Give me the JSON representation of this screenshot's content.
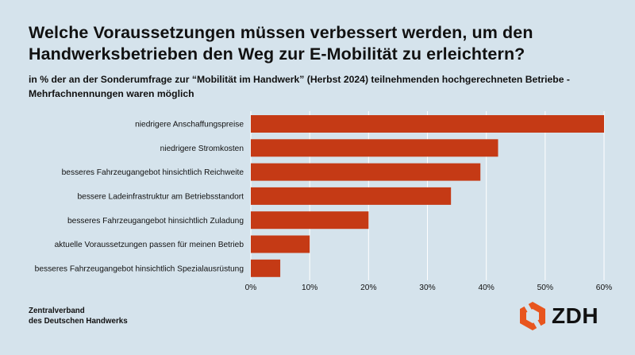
{
  "title_line1": "Welche Voraussetzungen müssen verbessert werden, um den",
  "title_line2": "Handwerksbetrieben den Weg zur E-Mobilität zu erleichtern?",
  "subtitle_line1": "in % der an der Sonderumfrage zur “Mobilität im Handwerk” (Herbst 2024) teilnehmenden hochgerechneten Betriebe  -",
  "subtitle_line2": "Mehrfachnennungen waren möglich",
  "footer_line1": "Zentralverband",
  "footer_line2": "des Deutschen Handwerks",
  "logo_text": "ZDH",
  "colors": {
    "bar": "#c53a15",
    "grid": "#ffffff",
    "background": "#d5e3ec",
    "logo": "#e8551e"
  },
  "chart_data": {
    "type": "bar",
    "orientation": "horizontal",
    "categories": [
      "niedrigere Anschaffungspreise",
      "niedrigere Stromkosten",
      "besseres Fahrzeugangebot hinsichtlich Reichweite",
      "bessere Ladeinfrastruktur am Betriebsstandort",
      "besseres Fahrzeugangebot hinsichtlich Zuladung",
      "aktuelle Voraussetzungen passen für meinen Betrieb",
      "besseres Fahrzeugangebot hinsichtlich Spezialausrüstung"
    ],
    "values": [
      60,
      42,
      39,
      34,
      20,
      10,
      5
    ],
    "xlim": [
      0,
      60
    ],
    "ticks": [
      0,
      10,
      20,
      30,
      40,
      50,
      60
    ],
    "tick_labels": [
      "0%",
      "10%",
      "20%",
      "30%",
      "40%",
      "50%",
      "60%"
    ],
    "grid": true
  }
}
